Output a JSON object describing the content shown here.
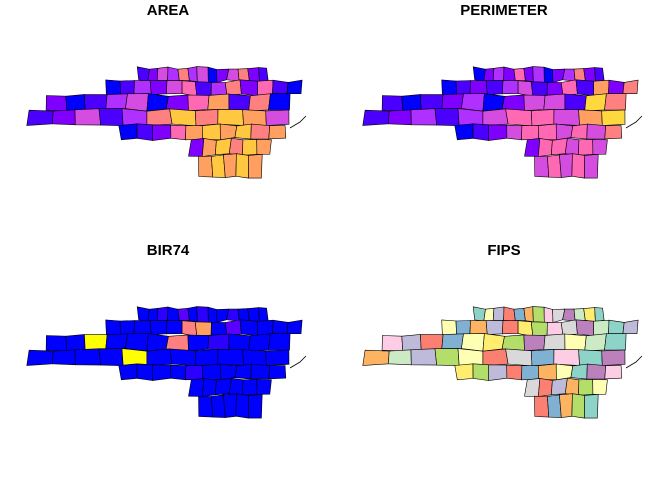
{
  "panels": [
    {
      "title": "AREA",
      "palette": [
        "#0000FF",
        "#0000FF",
        "#4B00FF",
        "#8000FF",
        "#B030FF",
        "#D44CE0",
        "#FF69B4",
        "#FF8080",
        "#FFA060",
        "#FFC840"
      ],
      "row_values": [
        [
          2,
          3,
          5,
          4,
          7,
          4,
          5,
          1,
          3,
          5,
          7,
          3,
          2
        ],
        [
          1,
          2,
          4,
          3,
          5,
          6,
          2,
          4,
          7,
          3,
          6,
          2,
          1
        ],
        [
          3,
          0,
          2,
          4,
          5,
          1,
          3,
          6,
          8,
          2,
          7,
          1
        ],
        [
          2,
          3,
          5,
          2,
          4,
          7,
          9,
          7,
          9,
          8,
          5
        ],
        [
          1,
          2,
          3,
          6,
          8,
          9,
          8,
          9,
          7,
          8
        ],
        [
          3,
          8,
          9,
          7,
          9,
          8
        ],
        [
          8,
          9,
          8,
          9,
          8
        ]
      ]
    },
    {
      "title": "PERIMETER",
      "palette": [
        "#0000FF",
        "#0000FF",
        "#4B00FF",
        "#8000FF",
        "#B030FF",
        "#D44CE0",
        "#FF69B4",
        "#FF8080",
        "#FFA060",
        "#FFD840"
      ],
      "row_values": [
        [
          1,
          3,
          4,
          3,
          6,
          3,
          4,
          1,
          3,
          4,
          7,
          3,
          2
        ],
        [
          1,
          2,
          3,
          2,
          4,
          5,
          2,
          3,
          6,
          2,
          8,
          3,
          7
        ],
        [
          2,
          0,
          2,
          3,
          4,
          1,
          3,
          5,
          5,
          2,
          9,
          7
        ],
        [
          2,
          3,
          4,
          2,
          4,
          5,
          6,
          6,
          5,
          8,
          9
        ],
        [
          1,
          2,
          3,
          5,
          6,
          6,
          5,
          6,
          5,
          7
        ],
        [
          3,
          6,
          6,
          5,
          6,
          5
        ],
        [
          5,
          6,
          5,
          6,
          5
        ]
      ]
    },
    {
      "title": "BIR74",
      "palette": [
        "#0000FF",
        "#0000FF",
        "#2B00FF",
        "#5A00FF",
        "#8000FF",
        "#B040FF",
        "#FF69B4",
        "#FF8080",
        "#FFA060",
        "#FFFF00"
      ],
      "row_values": [
        [
          0,
          1,
          2,
          1,
          3,
          1,
          2,
          0,
          1,
          2,
          1,
          1,
          0
        ],
        [
          0,
          1,
          1,
          0,
          1,
          7,
          8,
          1,
          3,
          1,
          0,
          1,
          0
        ],
        [
          0,
          0,
          9,
          1,
          1,
          0,
          7,
          1,
          2,
          0,
          1,
          0
        ],
        [
          0,
          1,
          1,
          0,
          9,
          1,
          1,
          0,
          1,
          0,
          1
        ],
        [
          0,
          0,
          1,
          1,
          2,
          1,
          0,
          1,
          0,
          1
        ],
        [
          1,
          1,
          0,
          1,
          1,
          0
        ],
        [
          1,
          0,
          1,
          0,
          1
        ]
      ]
    },
    {
      "title": "FIPS",
      "palette": [
        "#8DD3C7",
        "#FFFFB3",
        "#BEBADA",
        "#FB8072",
        "#80B1D3",
        "#FDB462",
        "#B3DE69",
        "#FCCDE5",
        "#D9D9D9",
        "#BC80BD",
        "#CCEBC5",
        "#FFED6F"
      ],
      "row_values": [
        [
          0,
          1,
          2,
          3,
          4,
          5,
          6,
          7,
          8,
          9,
          10,
          11,
          0
        ],
        [
          1,
          4,
          5,
          2,
          3,
          11,
          6,
          7,
          8,
          9,
          10,
          0,
          2
        ],
        [
          7,
          2,
          3,
          4,
          1,
          11,
          6,
          9,
          8,
          1,
          10,
          0
        ],
        [
          5,
          10,
          2,
          6,
          1,
          3,
          8,
          4,
          7,
          0,
          9
        ],
        [
          11,
          6,
          2,
          3,
          4,
          5,
          1,
          0,
          9,
          7
        ],
        [
          8,
          3,
          2,
          5,
          6,
          1
        ],
        [
          3,
          4,
          5,
          6,
          0
        ]
      ]
    }
  ]
}
